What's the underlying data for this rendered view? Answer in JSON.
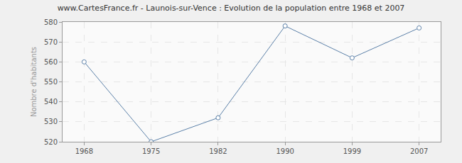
{
  "chart_data": {
    "type": "line",
    "title": "www.CartesFrance.fr - Launois-sur-Vence : Evolution de la population entre 1968 et 2007",
    "y_label": "Nombre d'habitants",
    "categories": [
      "1968",
      "1975",
      "1982",
      "1990",
      "1999",
      "2007"
    ],
    "values": [
      560,
      520,
      532,
      578,
      562,
      577
    ],
    "color": "#5b80a8",
    "marker": "circle",
    "ylim": [
      520,
      580
    ],
    "yticks": [
      520,
      530,
      540,
      550,
      560,
      570,
      580
    ],
    "grid": true
  }
}
